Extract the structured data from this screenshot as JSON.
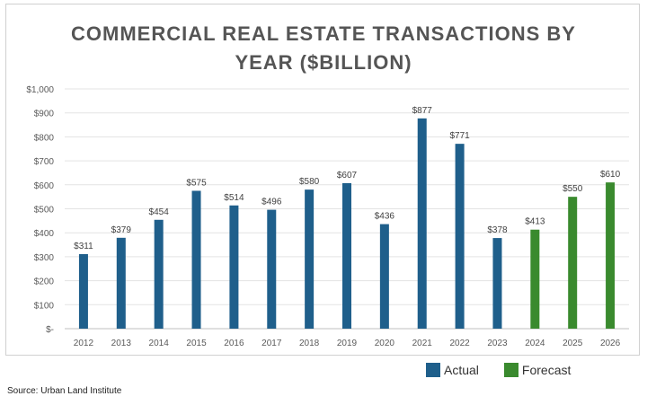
{
  "chart_data": {
    "type": "bar",
    "title_line1": "COMMERCIAL REAL ESTATE TRANSACTIONS BY",
    "title_line2": "YEAR ($BILLION)",
    "categories": [
      "2012",
      "2013",
      "2014",
      "2015",
      "2016",
      "2017",
      "2018",
      "2019",
      "2020",
      "2021",
      "2022",
      "2023",
      "2024",
      "2025",
      "2026"
    ],
    "values": [
      311,
      379,
      454,
      575,
      514,
      496,
      580,
      607,
      436,
      877,
      771,
      378,
      413,
      550,
      610
    ],
    "value_labels": [
      "$311",
      "$379",
      "$454",
      "$575",
      "$514",
      "$496",
      "$580",
      "$607",
      "$436",
      "$877",
      "$771",
      "$378",
      "$413",
      "$550",
      "$610"
    ],
    "series_kind": [
      "Actual",
      "Actual",
      "Actual",
      "Actual",
      "Actual",
      "Actual",
      "Actual",
      "Actual",
      "Actual",
      "Actual",
      "Actual",
      "Actual",
      "Forecast",
      "Forecast",
      "Forecast"
    ],
    "series": [
      {
        "name": "Actual",
        "color": "#1f5f8b"
      },
      {
        "name": "Forecast",
        "color": "#3a8a2e"
      }
    ],
    "ylim": [
      0,
      1000
    ],
    "yticks": [
      0,
      100,
      200,
      300,
      400,
      500,
      600,
      700,
      800,
      900,
      1000
    ],
    "ytick_labels": [
      "$-",
      "$100",
      "$200",
      "$300",
      "$400",
      "$500",
      "$600",
      "$700",
      "$800",
      "$900",
      "$1,000"
    ],
    "grid": true,
    "legend_position": "bottom-right"
  },
  "source": "Source: Urban Land Institute"
}
